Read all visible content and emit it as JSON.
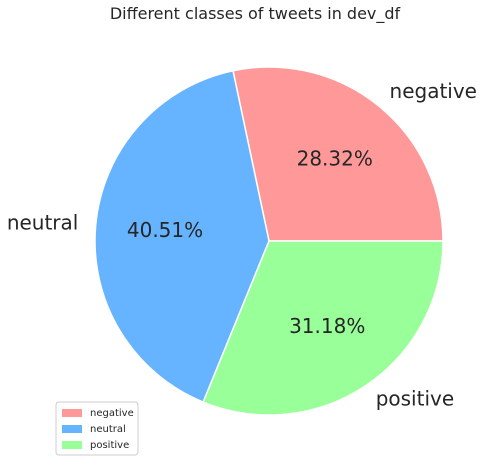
{
  "chart_data": {
    "type": "pie",
    "title": "Different classes of tweets in dev_df",
    "slices": [
      {
        "label": "negative",
        "value": 28.32,
        "pct_label": "28.32%",
        "color": "#ff9999"
      },
      {
        "label": "neutral",
        "value": 40.51,
        "pct_label": "40.51%",
        "color": "#66b3ff"
      },
      {
        "label": "positive",
        "value": 31.18,
        "pct_label": "31.18%",
        "color": "#99ff99"
      }
    ],
    "start_angle_deg": 0,
    "direction": "counterclockwise",
    "legend": {
      "placement": "lower-left",
      "entries": [
        "negative",
        "neutral",
        "positive"
      ]
    }
  }
}
